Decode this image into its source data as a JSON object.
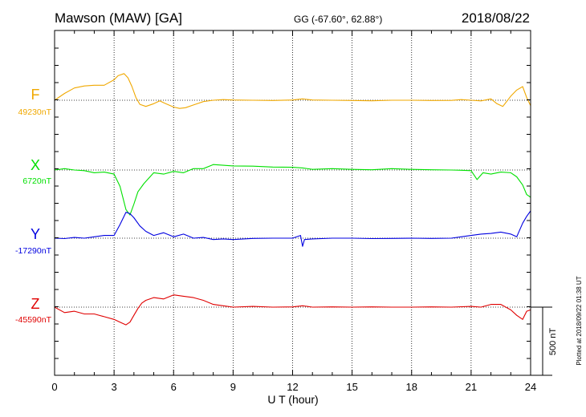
{
  "header": {
    "station": "Mawson (MAW)  [GA]",
    "coords": "GG (-67.60°,  62.88°)",
    "date": "2018/08/22"
  },
  "footer": {
    "plotted": "Plotted at 2018/09/22 01:38 UT"
  },
  "scale_label": "500 nT",
  "colors": {
    "F": "#f0a800",
    "X": "#00e000",
    "Y": "#0000e0",
    "Z": "#e00000",
    "axis": "#000000"
  },
  "chart_data": {
    "type": "line",
    "title": "Mawson (MAW)  [GA]",
    "xlabel": "U T (hour)",
    "xlim": [
      0,
      24
    ],
    "x_ticks": [
      "0",
      "3",
      "6",
      "9",
      "12",
      "15",
      "18",
      "21",
      "24"
    ],
    "scale_bar_nT": 500,
    "grid": true,
    "series": [
      {
        "name": "F",
        "baseline_label": "49230nT",
        "x": [
          0,
          0.5,
          1,
          1.5,
          2,
          2.5,
          3,
          3.2,
          3.5,
          3.7,
          3.9,
          4.1,
          4.3,
          4.6,
          5,
          5.3,
          5.6,
          6,
          6.3,
          6.6,
          7,
          7.5,
          8,
          8.5,
          9,
          10,
          11,
          12,
          12.5,
          13,
          14,
          15,
          16,
          17,
          18,
          19,
          20,
          20.5,
          21,
          21.5,
          22,
          22.3,
          22.6,
          23,
          23.3,
          23.6,
          23.8,
          24
        ],
        "y": [
          49230,
          49280,
          49320,
          49335,
          49340,
          49340,
          49380,
          49410,
          49425,
          49395,
          49330,
          49250,
          49200,
          49185,
          49205,
          49225,
          49205,
          49180,
          49170,
          49175,
          49195,
          49220,
          49230,
          49235,
          49232,
          49230,
          49228,
          49232,
          49240,
          49232,
          49230,
          49228,
          49226,
          49230,
          49230,
          49228,
          49229,
          49235,
          49230,
          49225,
          49240,
          49205,
          49185,
          49260,
          49305,
          49330,
          49250,
          49190
        ]
      },
      {
        "name": "X",
        "baseline_label": "6720nT",
        "x": [
          0,
          0.5,
          1,
          1.5,
          2,
          2.5,
          3,
          3.3,
          3.6,
          3.8,
          4,
          4.2,
          4.5,
          5,
          5.5,
          6,
          6.5,
          7,
          7.5,
          8,
          8.5,
          9,
          10,
          11,
          12,
          12.5,
          13,
          14,
          15,
          16,
          17,
          18,
          19,
          20,
          20.5,
          21,
          21.3,
          21.6,
          22,
          22.5,
          23,
          23.3,
          23.6,
          23.8,
          24
        ],
        "y": [
          6720,
          6730,
          6720,
          6715,
          6700,
          6705,
          6690,
          6600,
          6430,
          6390,
          6470,
          6560,
          6620,
          6700,
          6690,
          6710,
          6700,
          6730,
          6730,
          6760,
          6755,
          6750,
          6748,
          6742,
          6740,
          6735,
          6725,
          6730,
          6725,
          6722,
          6730,
          6725,
          6722,
          6720,
          6718,
          6715,
          6650,
          6700,
          6690,
          6705,
          6700,
          6670,
          6610,
          6540,
          6520
        ]
      },
      {
        "name": "Y",
        "baseline_label": "-17290nT",
        "x": [
          0,
          0.5,
          1,
          1.5,
          2,
          2.5,
          3,
          3.3,
          3.6,
          3.8,
          4,
          4.3,
          4.6,
          5,
          5.5,
          6,
          6.5,
          7,
          7.5,
          8,
          8.5,
          9,
          10,
          11,
          12,
          12.4,
          12.5,
          12.6,
          13,
          14,
          15,
          16,
          17,
          18,
          19,
          20,
          20.5,
          21,
          21.5,
          22,
          22.5,
          23,
          23.3,
          23.6,
          23.8,
          24
        ],
        "y": [
          -17290,
          -17293,
          -17285,
          -17290,
          -17280,
          -17270,
          -17270,
          -17190,
          -17100,
          -17110,
          -17140,
          -17200,
          -17240,
          -17270,
          -17250,
          -17280,
          -17260,
          -17290,
          -17285,
          -17300,
          -17295,
          -17300,
          -17292,
          -17290,
          -17290,
          -17270,
          -17350,
          -17300,
          -17295,
          -17290,
          -17290,
          -17293,
          -17292,
          -17290,
          -17292,
          -17290,
          -17280,
          -17270,
          -17260,
          -17255,
          -17245,
          -17260,
          -17280,
          -17180,
          -17130,
          -17090
        ]
      },
      {
        "name": "Z",
        "baseline_label": "-45590nT",
        "x": [
          0,
          0.5,
          1,
          1.5,
          2,
          2.5,
          3,
          3.3,
          3.6,
          3.8,
          4,
          4.2,
          4.4,
          4.6,
          5,
          5.5,
          6,
          6.5,
          7,
          7.5,
          8,
          8.5,
          9,
          10,
          11,
          12,
          12.5,
          13,
          14,
          15,
          16,
          17,
          18,
          19,
          20,
          21,
          21.5,
          22,
          22.5,
          23,
          23.3,
          23.6,
          23.8,
          24
        ],
        "y": [
          -45590,
          -45630,
          -45620,
          -45640,
          -45640,
          -45660,
          -45680,
          -45700,
          -45720,
          -45700,
          -45650,
          -45600,
          -45560,
          -45540,
          -45520,
          -45530,
          -45500,
          -45510,
          -45520,
          -45540,
          -45570,
          -45580,
          -45590,
          -45585,
          -45590,
          -45588,
          -45580,
          -45590,
          -45588,
          -45590,
          -45588,
          -45590,
          -45590,
          -45588,
          -45590,
          -45585,
          -45590,
          -45570,
          -45570,
          -45610,
          -45650,
          -45680,
          -45620,
          -45610
        ]
      }
    ]
  }
}
